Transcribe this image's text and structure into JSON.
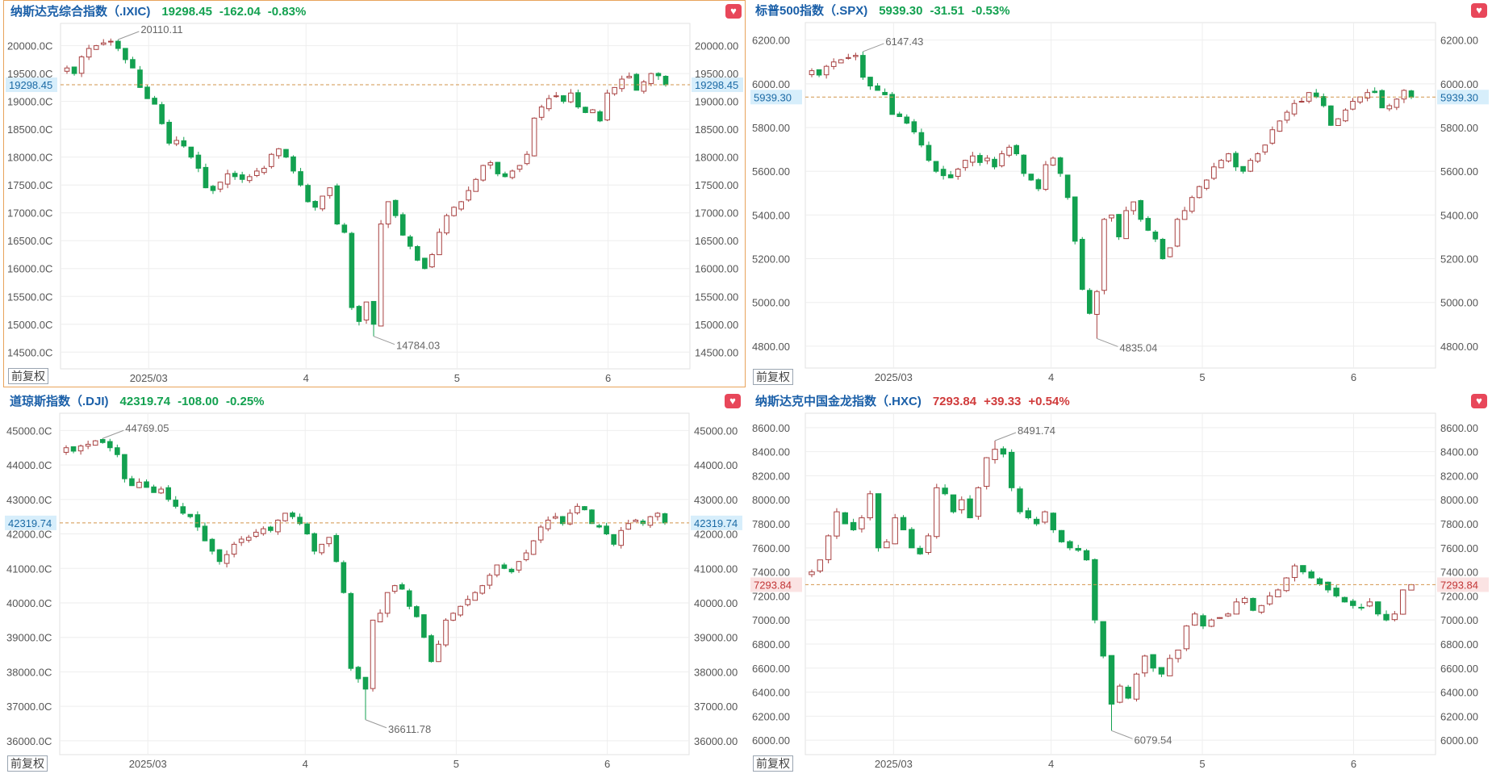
{
  "colors": {
    "up": "#a84141",
    "down": "#13a150",
    "grid": "#eeeeee",
    "ref": "#d2954b",
    "axis_text": "#555555"
  },
  "adjust_label": "前复权",
  "x_ticks": [
    "2025/03",
    "4",
    "5",
    "6"
  ],
  "charts": [
    {
      "name": "纳斯达克综合指数（.IXIC)",
      "last": "19298.45",
      "change": "-162.04",
      "pct": "-0.83%",
      "dir": "down",
      "y_ticks": [
        "14500.0C",
        "15000.0C",
        "15500.0C",
        "16000.0C",
        "16500.0C",
        "17000.0C",
        "17500.0C",
        "18000.0C",
        "18500.0C",
        "19000.0C",
        "19500.0C",
        "20000.0C"
      ],
      "y_ticks_right": [
        "14500.00",
        "15000.00",
        "15500.00",
        "16000.00",
        "16500.00",
        "17000.00",
        "17500.00",
        "18000.00",
        "18500.00",
        "19000.00",
        "19500.00",
        "20000.00"
      ],
      "last_label": "19298.45",
      "max_label": "20110.11",
      "min_label": "14784.03",
      "chart_data": {
        "type": "candlestick",
        "title": "纳斯达克综合指数（.IXIC)",
        "ylim": [
          14200,
          20400
        ],
        "y_tick_values": [
          14500,
          15000,
          15500,
          16000,
          16500,
          17000,
          17500,
          18000,
          18500,
          19000,
          19500,
          20000
        ],
        "last_price": 19298.45,
        "high": 20110.11,
        "low": 14784.03,
        "closes": [
          19600,
          19500,
          19800,
          19950,
          20000,
          20050,
          20080,
          19950,
          19750,
          19600,
          19250,
          19050,
          18950,
          18600,
          18250,
          18300,
          18200,
          18000,
          17800,
          17450,
          17400,
          17550,
          17700,
          17650,
          17600,
          17650,
          17750,
          17800,
          18050,
          18150,
          18000,
          17750,
          17500,
          17200,
          17100,
          17300,
          17450,
          16800,
          16650,
          15300,
          15050,
          15400,
          15000,
          16800,
          17200,
          16950,
          16600,
          16400,
          16150,
          16000,
          16250,
          16650,
          16950,
          17100,
          17200,
          17400,
          17600,
          17850,
          17900,
          17700,
          17650,
          17750,
          17850,
          18050,
          18700,
          18900,
          19050,
          19100,
          19000,
          19150,
          18900,
          18800,
          18850,
          18650,
          19150,
          19250,
          19400,
          19450,
          19200,
          19350,
          19500,
          19460,
          19298
        ]
      }
    },
    {
      "name": "标普500指数（.SPX)",
      "last": "5939.30",
      "change": "-31.51",
      "pct": "-0.53%",
      "dir": "down",
      "y_ticks": [
        "4800.00",
        "5000.00",
        "5200.00",
        "5400.00",
        "5600.00",
        "5800.00",
        "6000.00",
        "6200.00"
      ],
      "y_ticks_right": [
        "4800.00",
        "5000.00",
        "5200.00",
        "5400.00",
        "5600.00",
        "5800.00",
        "6000.00",
        "6200.00"
      ],
      "last_label": "5939.30",
      "max_label": "6147.43",
      "min_label": "4835.04",
      "chart_data": {
        "type": "candlestick",
        "title": "标普500指数（.SPX)",
        "ylim": [
          4700,
          6280
        ],
        "y_tick_values": [
          4800,
          5000,
          5200,
          5400,
          5600,
          5800,
          6000,
          6200
        ],
        "last_price": 5939.3,
        "high": 6147.43,
        "low": 4835.04,
        "closes": [
          6060,
          6040,
          6080,
          6100,
          6110,
          6120,
          6130,
          6030,
          5990,
          5970,
          5950,
          5860,
          5850,
          5820,
          5780,
          5720,
          5650,
          5600,
          5580,
          5570,
          5610,
          5650,
          5670,
          5640,
          5660,
          5620,
          5680,
          5710,
          5680,
          5590,
          5560,
          5520,
          5630,
          5660,
          5590,
          5480,
          5280,
          5060,
          4950,
          5050,
          5380,
          5400,
          5300,
          5420,
          5460,
          5380,
          5330,
          5290,
          5200,
          5250,
          5380,
          5420,
          5480,
          5530,
          5560,
          5620,
          5650,
          5680,
          5620,
          5600,
          5650,
          5680,
          5720,
          5790,
          5830,
          5870,
          5910,
          5920,
          5960,
          5940,
          5900,
          5810,
          5840,
          5880,
          5920,
          5940,
          5960,
          5960,
          5890,
          5900,
          5930,
          5970,
          5939
        ]
      }
    },
    {
      "name": "道琼斯指数（.DJI)",
      "last": "42319.74",
      "change": "-108.00",
      "pct": "-0.25%",
      "dir": "down",
      "y_ticks": [
        "36000.0C",
        "37000.0C",
        "38000.0C",
        "39000.0C",
        "40000.0C",
        "41000.0C",
        "42000.0C",
        "43000.0C",
        "44000.0C",
        "45000.0C"
      ],
      "y_ticks_right": [
        "36000.00",
        "37000.00",
        "38000.00",
        "39000.00",
        "40000.00",
        "41000.00",
        "42000.00",
        "43000.00",
        "44000.00",
        "45000.00"
      ],
      "last_label": "42319.74",
      "max_label": "44769.05",
      "min_label": "36611.78",
      "chart_data": {
        "type": "candlestick",
        "title": "道琼斯指数（.DJI)",
        "ylim": [
          35600,
          45500
        ],
        "y_tick_values": [
          36000,
          37000,
          38000,
          39000,
          40000,
          41000,
          42000,
          43000,
          44000,
          45000
        ],
        "last_price": 42319.74,
        "high": 44769.05,
        "low": 36611.78,
        "closes": [
          44500,
          44400,
          44550,
          44600,
          44700,
          44650,
          44500,
          44300,
          43600,
          43400,
          43500,
          43350,
          43200,
          43300,
          43000,
          42800,
          42600,
          42500,
          42200,
          41800,
          41500,
          41200,
          41400,
          41700,
          41850,
          41900,
          42050,
          42150,
          42100,
          42400,
          42600,
          42500,
          42300,
          42000,
          41500,
          41700,
          41900,
          41200,
          40300,
          38100,
          37800,
          37500,
          39500,
          39700,
          40300,
          40500,
          40400,
          39900,
          39600,
          39000,
          38300,
          38800,
          39500,
          39700,
          39900,
          40100,
          40300,
          40500,
          40800,
          41100,
          41000,
          40900,
          41200,
          41450,
          41800,
          42200,
          42400,
          42500,
          42300,
          42600,
          42800,
          42700,
          42300,
          42200,
          42000,
          41700,
          42100,
          42300,
          42400,
          42300,
          42500,
          42600,
          42319
        ]
      }
    },
    {
      "name": "纳斯达克中国金龙指数（.HXC)",
      "last": "7293.84",
      "change": "+39.33",
      "pct": "+0.54%",
      "dir": "up",
      "y_ticks": [
        "6000.00",
        "6200.00",
        "6400.00",
        "6600.00",
        "6800.00",
        "7000.00",
        "7200.00",
        "7400.00",
        "7600.00",
        "7800.00",
        "8000.00",
        "8200.00",
        "8400.00",
        "8600.00"
      ],
      "y_ticks_right": [
        "6000.00",
        "6200.00",
        "6400.00",
        "6600.00",
        "6800.00",
        "7000.00",
        "7200.00",
        "7400.00",
        "7600.00",
        "7800.00",
        "8000.00",
        "8200.00",
        "8400.00",
        "8600.00"
      ],
      "last_label": "7293.84",
      "max_label": "8491.74",
      "min_label": "6079.54",
      "chart_data": {
        "type": "candlestick",
        "title": "纳斯达克中国金龙指数（.HXC)",
        "ylim": [
          5880,
          8720
        ],
        "y_tick_values": [
          6000,
          6200,
          6400,
          6600,
          6800,
          7000,
          7200,
          7400,
          7600,
          7800,
          8000,
          8200,
          8400,
          8600
        ],
        "last_price": 7293.84,
        "high": 8491.74,
        "low": 6079.54,
        "closes": [
          7400,
          7500,
          7700,
          7900,
          7800,
          7750,
          7850,
          8050,
          7600,
          7650,
          7850,
          7750,
          7600,
          7550,
          7700,
          8100,
          8050,
          7900,
          8000,
          7850,
          8100,
          8350,
          8420,
          8380,
          8100,
          7900,
          7850,
          7800,
          7900,
          7750,
          7650,
          7600,
          7580,
          7500,
          7000,
          6700,
          6300,
          6450,
          6350,
          6550,
          6700,
          6600,
          6550,
          6680,
          6750,
          6950,
          7050,
          6950,
          7000,
          7020,
          7050,
          7150,
          7180,
          7080,
          7120,
          7200,
          7250,
          7350,
          7450,
          7400,
          7350,
          7300,
          7250,
          7200,
          7150,
          7120,
          7100,
          7150,
          7050,
          7000,
          7050,
          7250,
          7293
        ]
      }
    }
  ]
}
